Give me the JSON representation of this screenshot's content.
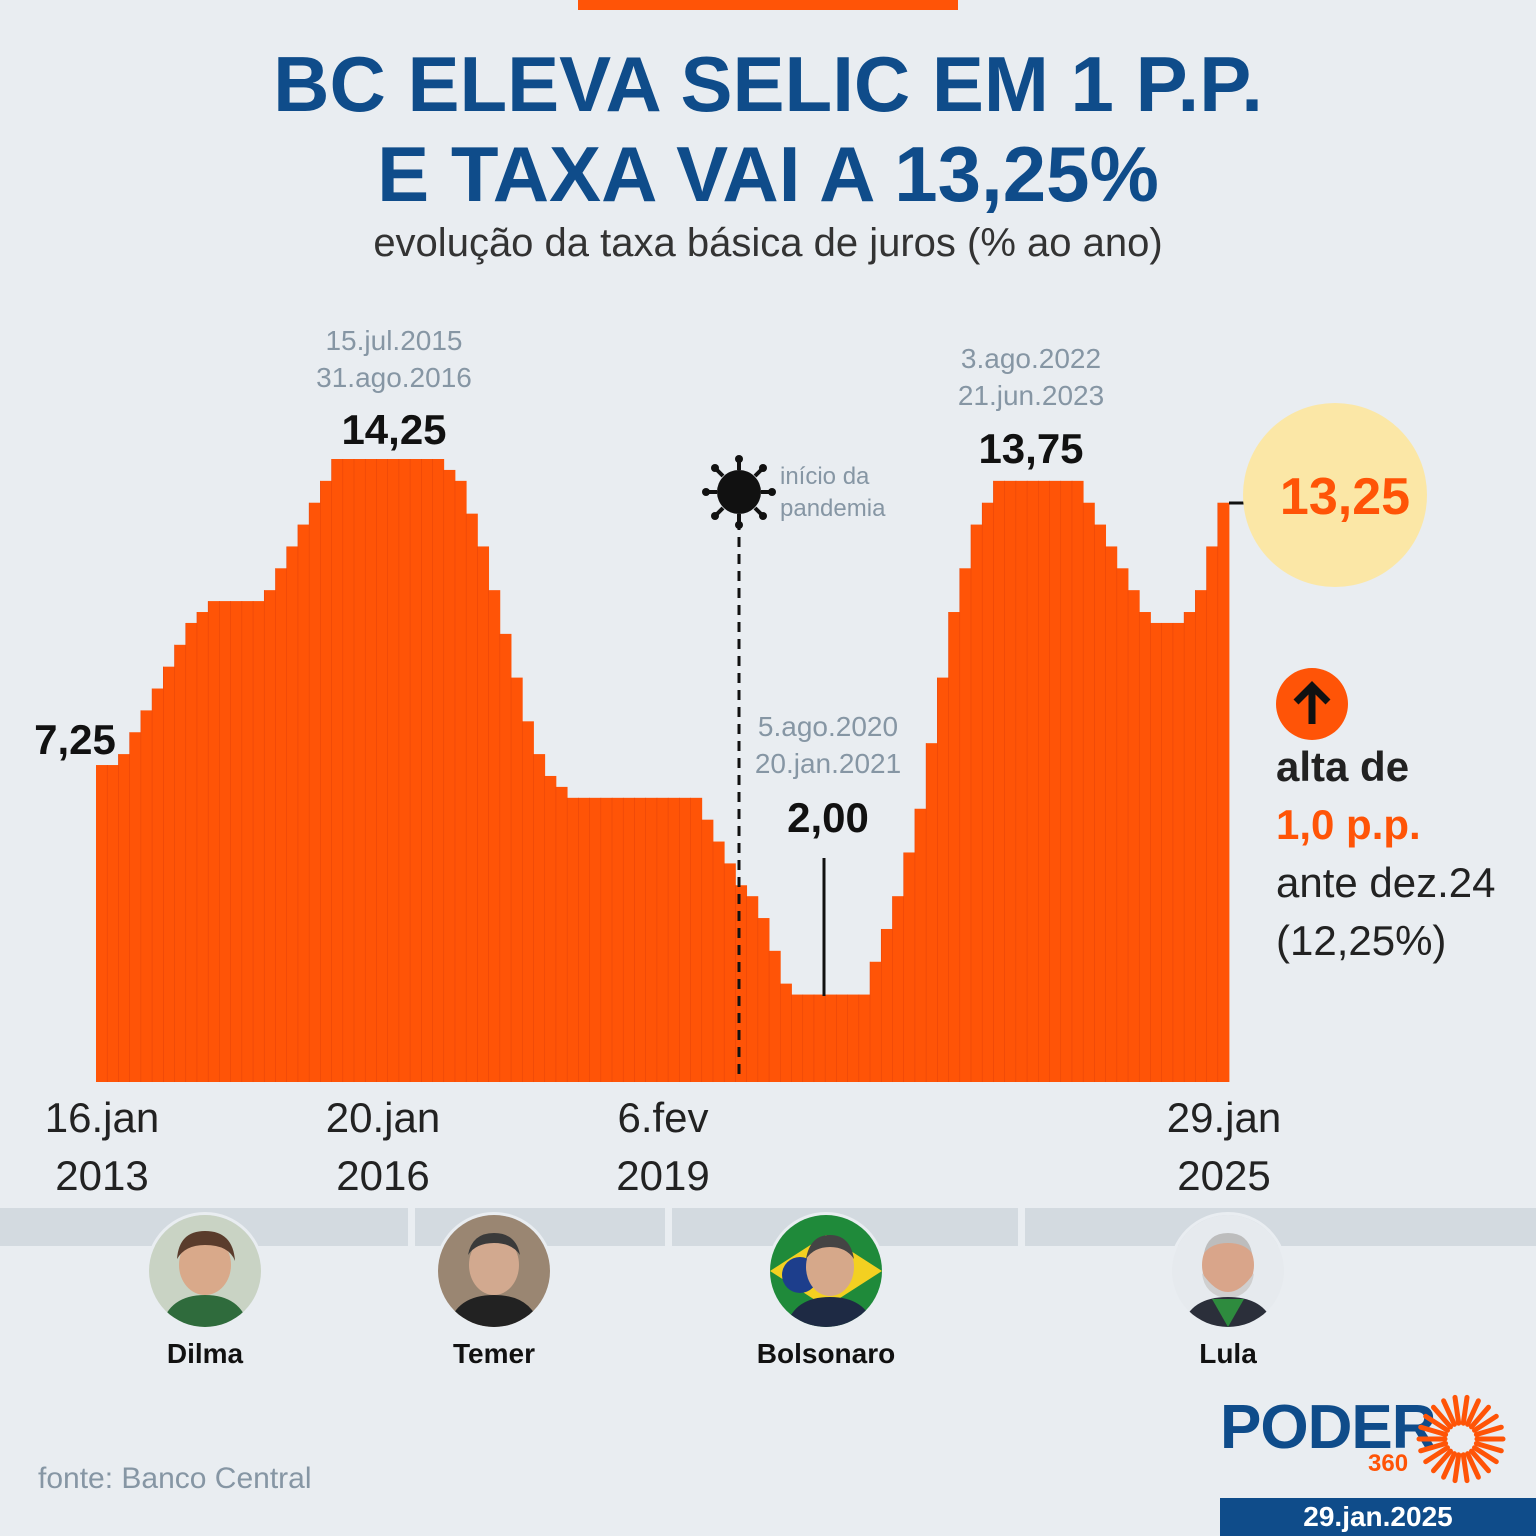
{
  "header": {
    "title_line1": "BC ELEVA SELIC EM 1 P.P.",
    "title_line2": "E TAXA VAI A 13,25%",
    "subtitle": "evolução da taxa básica de juros (% ao ano)"
  },
  "annotations": {
    "peak1_dates": [
      "15.jul.2015",
      "31.ago.2016"
    ],
    "peak1_value": "14,25",
    "start_value": "7,25",
    "pandemic_label": [
      "início da",
      "pandemia"
    ],
    "trough_dates": [
      "5.ago.2020",
      "20.jan.2021"
    ],
    "trough_value": "2,00",
    "peak2_dates": [
      "3.ago.2022",
      "21.jun.2023"
    ],
    "peak2_value": "13,75",
    "current_value": "13,25"
  },
  "x_labels": [
    {
      "line1": "16.jan",
      "line2": "2013"
    },
    {
      "line1": "20.jan",
      "line2": "2016"
    },
    {
      "line1": "6.fev",
      "line2": "2019"
    },
    {
      "line1": "29.jan",
      "line2": "2025"
    }
  ],
  "side_note": {
    "line1": "alta de",
    "line2": "1,0 p.p.",
    "line3": "ante dez.24",
    "line4": "(12,25%)"
  },
  "presidents": [
    {
      "name": "Dilma"
    },
    {
      "name": "Temer"
    },
    {
      "name": "Bolsonaro"
    },
    {
      "name": "Lula"
    }
  ],
  "footer": {
    "source": "fonte: Banco Central",
    "logo_word": "PODER",
    "logo_number": "360",
    "date": "29.jan.2025"
  },
  "colors": {
    "accent": "#ff5407",
    "brand_blue": "#0f4c8a",
    "highlight_circle": "#fbe7a6",
    "background": "#e9edf1"
  },
  "chart_data": {
    "type": "bar",
    "x_start": "16.jan.2013",
    "x_end": "29.jan.2025",
    "ylim": [
      0,
      15
    ],
    "values": [
      7.25,
      7.25,
      7.5,
      8,
      8.5,
      9,
      9.5,
      10,
      10.5,
      10.75,
      11,
      11,
      11,
      11,
      11,
      11.25,
      11.75,
      12.25,
      12.75,
      13.25,
      13.75,
      14.25,
      14.25,
      14.25,
      14.25,
      14.25,
      14.25,
      14.25,
      14.25,
      14.25,
      14.25,
      14,
      13.75,
      13,
      12.25,
      11.25,
      10.25,
      9.25,
      8.25,
      7.5,
      7,
      6.75,
      6.5,
      6.5,
      6.5,
      6.5,
      6.5,
      6.5,
      6.5,
      6.5,
      6.5,
      6.5,
      6.5,
      6.5,
      6,
      5.5,
      5,
      4.5,
      4.25,
      3.75,
      3,
      2.25,
      2,
      2,
      2,
      2,
      2,
      2,
      2,
      2.75,
      3.5,
      4.25,
      5.25,
      6.25,
      7.75,
      9.25,
      10.75,
      11.75,
      12.75,
      13.25,
      13.75,
      13.75,
      13.75,
      13.75,
      13.75,
      13.75,
      13.75,
      13.75,
      13.25,
      12.75,
      12.25,
      11.75,
      11.25,
      10.75,
      10.5,
      10.5,
      10.5,
      10.75,
      11.25,
      12.25,
      13.25
    ],
    "annotated_points": [
      {
        "label": "16.jan.2013",
        "value": 7.25
      },
      {
        "label": "15.jul.2015 – 31.ago.2016",
        "value": 14.25
      },
      {
        "label": "5.ago.2020 – 20.jan.2021",
        "value": 2.0
      },
      {
        "label": "3.ago.2022 – 21.jun.2023",
        "value": 13.75
      },
      {
        "label": "29.jan.2025",
        "value": 13.25
      }
    ]
  }
}
